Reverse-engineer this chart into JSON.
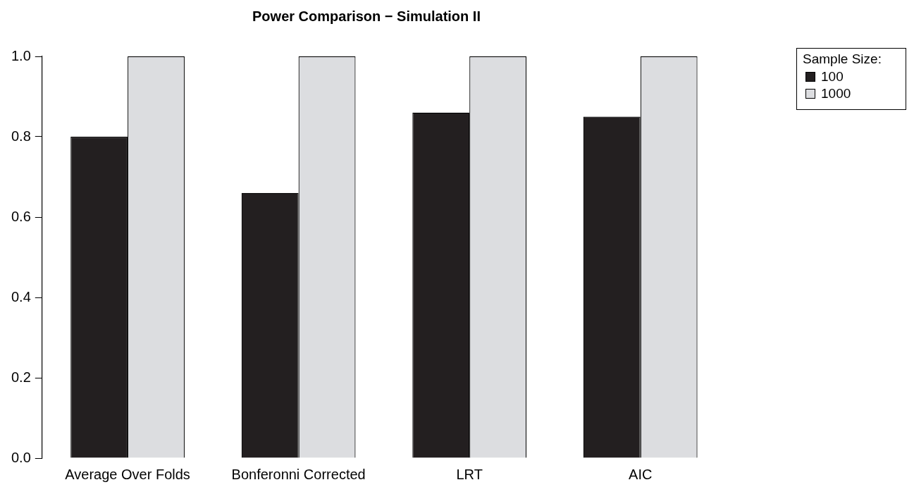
{
  "chart_data": {
    "type": "bar",
    "title": "Power Comparison − Simulation II",
    "categories": [
      "Average Over Folds",
      "Bonferonni Corrected",
      "LRT",
      "AIC"
    ],
    "series": [
      {
        "name": "100",
        "color": "#231f20",
        "values": [
          0.8,
          0.66,
          0.86,
          0.85
        ]
      },
      {
        "name": "1000",
        "color": "#dcdde0",
        "values": [
          1.0,
          1.0,
          1.0,
          1.0
        ]
      }
    ],
    "ylim": [
      0,
      1
    ],
    "yticks": [
      {
        "value": 0,
        "label": "0.0"
      },
      {
        "value": 0.2,
        "label": "0.2"
      },
      {
        "value": 0.4,
        "label": "0.4"
      },
      {
        "value": 0.6,
        "label": "0.6"
      },
      {
        "value": 0.8,
        "label": "0.8"
      },
      {
        "value": 1,
        "label": "1.0"
      }
    ],
    "grid": false,
    "legend": "right",
    "legend_title": "Sample Size:"
  }
}
